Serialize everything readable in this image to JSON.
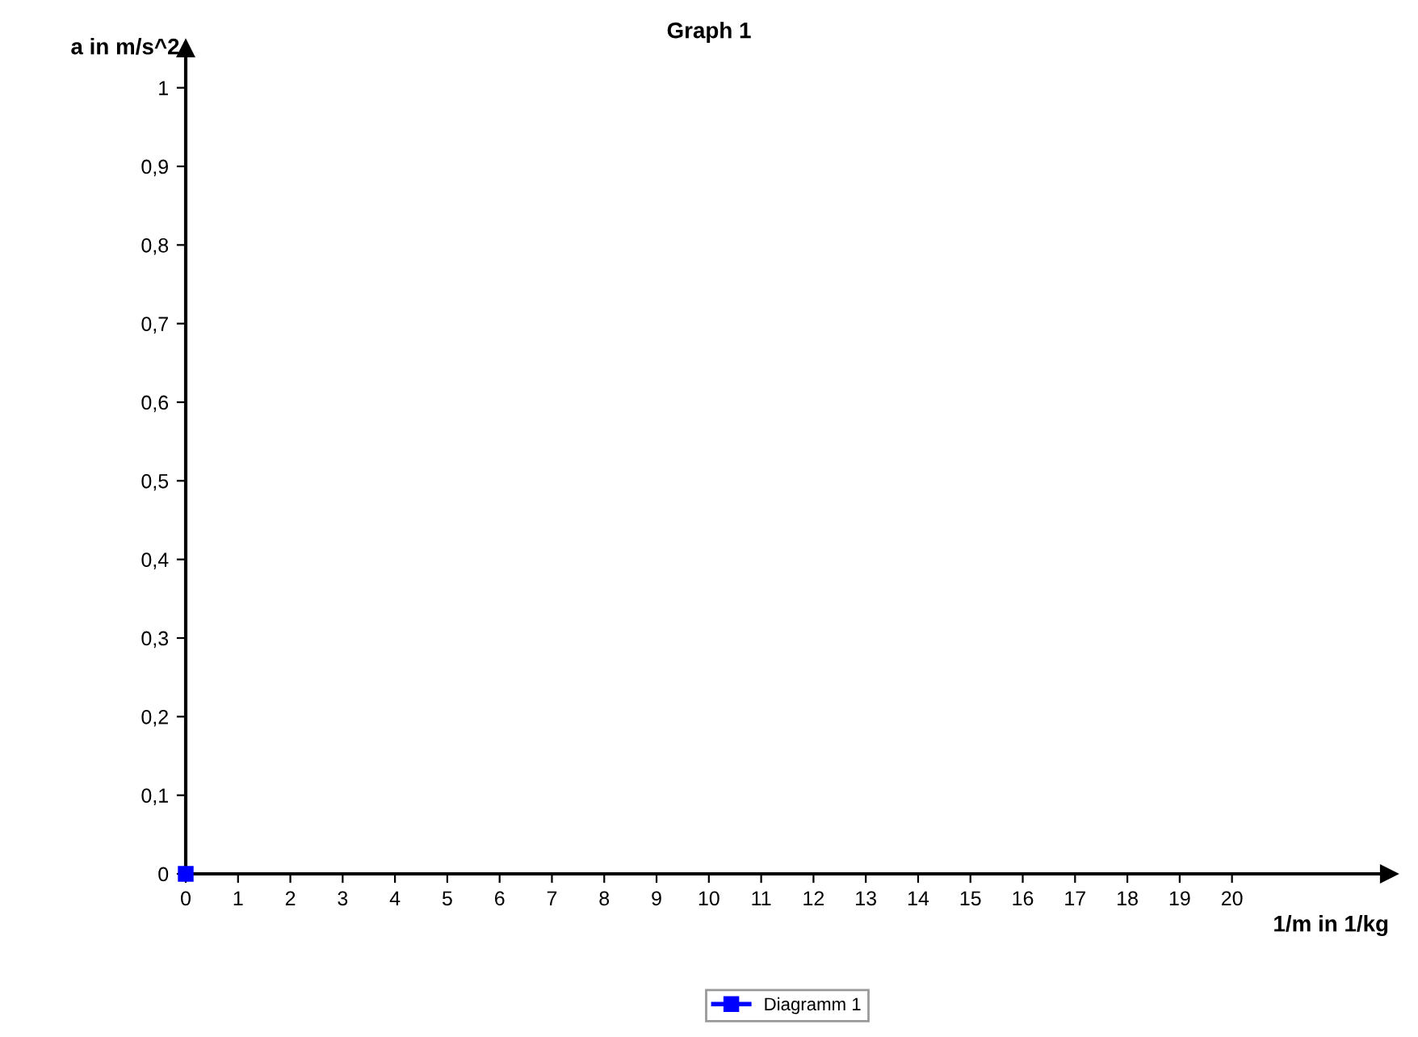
{
  "chart_data": {
    "type": "line",
    "title": "Graph 1",
    "xlabel": "1/m in 1/kg",
    "ylabel": "a in m/s^2",
    "x": [
      0
    ],
    "series": [
      {
        "name": "Diagramm 1",
        "color": "#0000ff",
        "values": [
          0
        ]
      }
    ],
    "xlim": [
      0,
      23
    ],
    "xticks": [
      0,
      1,
      2,
      3,
      4,
      5,
      6,
      7,
      8,
      9,
      10,
      11,
      12,
      13,
      14,
      15,
      16,
      17,
      18,
      19,
      20
    ],
    "ylim": [
      0,
      1.05
    ],
    "yticks": [
      0,
      {
        "value": 0.1,
        "label": "0,1"
      },
      {
        "value": 0.2,
        "label": "0,2"
      },
      {
        "value": 0.3,
        "label": "0,3"
      },
      {
        "value": 0.4,
        "label": "0,4"
      },
      {
        "value": 0.5,
        "label": "0,5"
      },
      {
        "value": 0.6,
        "label": "0,6"
      },
      {
        "value": 0.7,
        "label": "0,7"
      },
      {
        "value": 0.8,
        "label": "0,8"
      },
      {
        "value": 0.9,
        "label": "0,9"
      },
      1
    ],
    "grid": false,
    "legend": "bottom",
    "marker": "square",
    "line_style": "solid"
  }
}
